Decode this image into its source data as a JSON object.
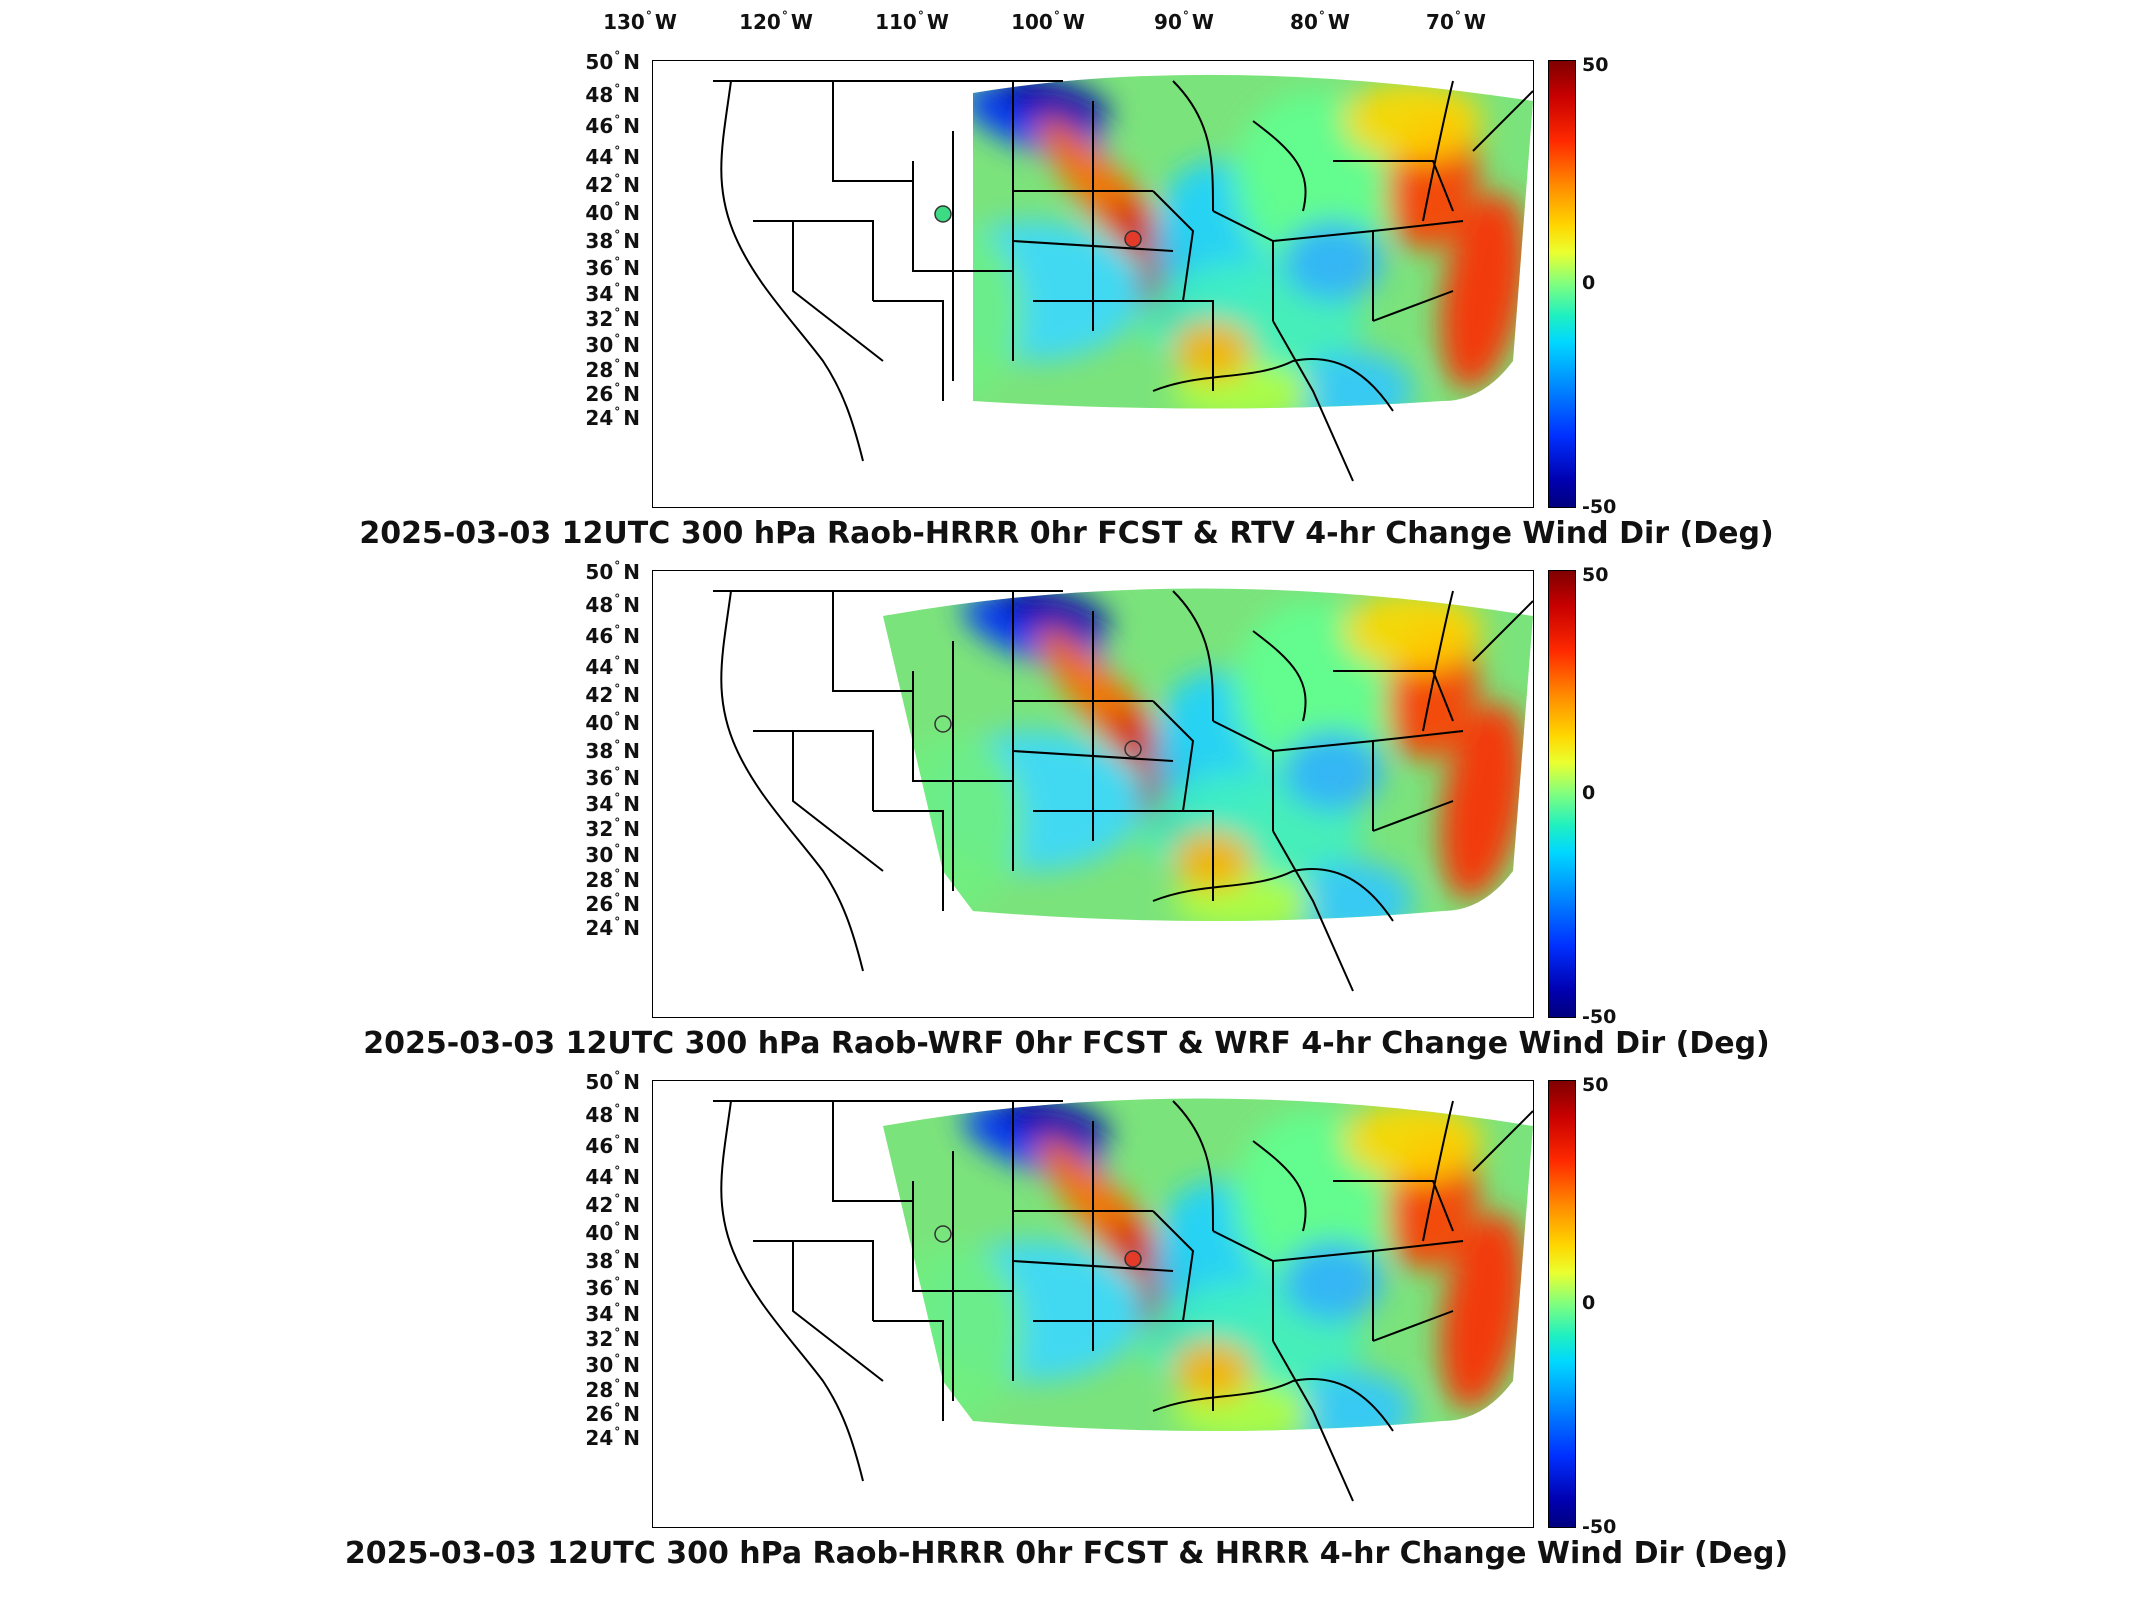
{
  "longitude_ticks": [
    "130° W",
    "120° W",
    "110° W",
    "100° W",
    "90° W",
    "80° W",
    "70° W"
  ],
  "latitude_ticks": [
    "50° N",
    "48° N",
    "46° N",
    "44° N",
    "42° N",
    "40° N",
    "38° N",
    "36° N",
    "34° N",
    "32° N",
    "30° N",
    "28° N",
    "26° N",
    "24° N"
  ],
  "colorbar": {
    "max": "50",
    "mid": "0",
    "min": "-50",
    "colors": [
      "#800000",
      "#ff2a00",
      "#ffd700",
      "#7fff7f",
      "#00d8ff",
      "#0030ff",
      "#00007f"
    ]
  },
  "panels": [
    {
      "title": "2025-03-03 12UTC 300 hPa Raob-HRRR 0hr FCST & RTV 4-hr Change Wind Dir (Deg)",
      "markers": [
        {
          "fill": "#3ddc84"
        },
        {
          "fill": "#e33b2a"
        }
      ]
    },
    {
      "title": "2025-03-03 12UTC 300 hPa Raob-WRF 0hr FCST & WRF 4-hr Change Wind Dir (Deg)",
      "markers": [
        {
          "fill": "none"
        },
        {
          "fill": "none"
        }
      ]
    },
    {
      "title": "2025-03-03 12UTC 300 hPa Raob-HRRR 0hr FCST & HRRR 4-hr Change Wind Dir (Deg)",
      "markers": [
        {
          "fill": "none"
        },
        {
          "fill": "#e33b2a"
        }
      ]
    }
  ]
}
